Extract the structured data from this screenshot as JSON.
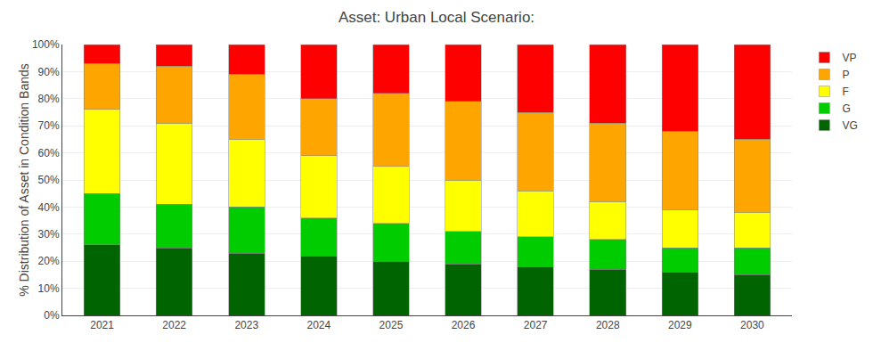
{
  "chart_data": {
    "type": "bar",
    "stacked": true,
    "title": "Asset: Urban Local Scenario:",
    "ylabel": "% Distribution of Asset in Condition Bands",
    "categories": [
      "2021",
      "2022",
      "2023",
      "2024",
      "2025",
      "2026",
      "2027",
      "2028",
      "2029",
      "2030"
    ],
    "series": [
      {
        "name": "VG",
        "color": "#006400",
        "values": [
          26,
          25,
          23,
          22,
          20,
          19,
          18,
          17,
          16,
          15
        ]
      },
      {
        "name": "G",
        "color": "#00cc00",
        "values": [
          19,
          16,
          17,
          14,
          14,
          12,
          11,
          11,
          9,
          10
        ]
      },
      {
        "name": "F",
        "color": "#ffff00",
        "values": [
          31,
          30,
          25,
          23,
          21,
          19,
          17,
          14,
          14,
          13
        ]
      },
      {
        "name": "P",
        "color": "#ffa500",
        "values": [
          17,
          21,
          24,
          21,
          27,
          29,
          29,
          29,
          29,
          27
        ]
      },
      {
        "name": "VP",
        "color": "#ff0000",
        "values": [
          7,
          8,
          11,
          20,
          18,
          21,
          25,
          29,
          32,
          35
        ]
      }
    ],
    "ylim": [
      0,
      100
    ],
    "yticks": [
      {
        "value": 0,
        "label": "0%"
      },
      {
        "value": 10,
        "label": "10%"
      },
      {
        "value": 20,
        "label": "20%"
      },
      {
        "value": 30,
        "label": "30%"
      },
      {
        "value": 40,
        "label": "40%"
      },
      {
        "value": 50,
        "label": "50%"
      },
      {
        "value": 60,
        "label": "60%"
      },
      {
        "value": 70,
        "label": "70%"
      },
      {
        "value": 80,
        "label": "80%"
      },
      {
        "value": 90,
        "label": "90%"
      },
      {
        "value": 100,
        "label": "100%"
      }
    ],
    "grid": true,
    "legend": "upper right"
  }
}
